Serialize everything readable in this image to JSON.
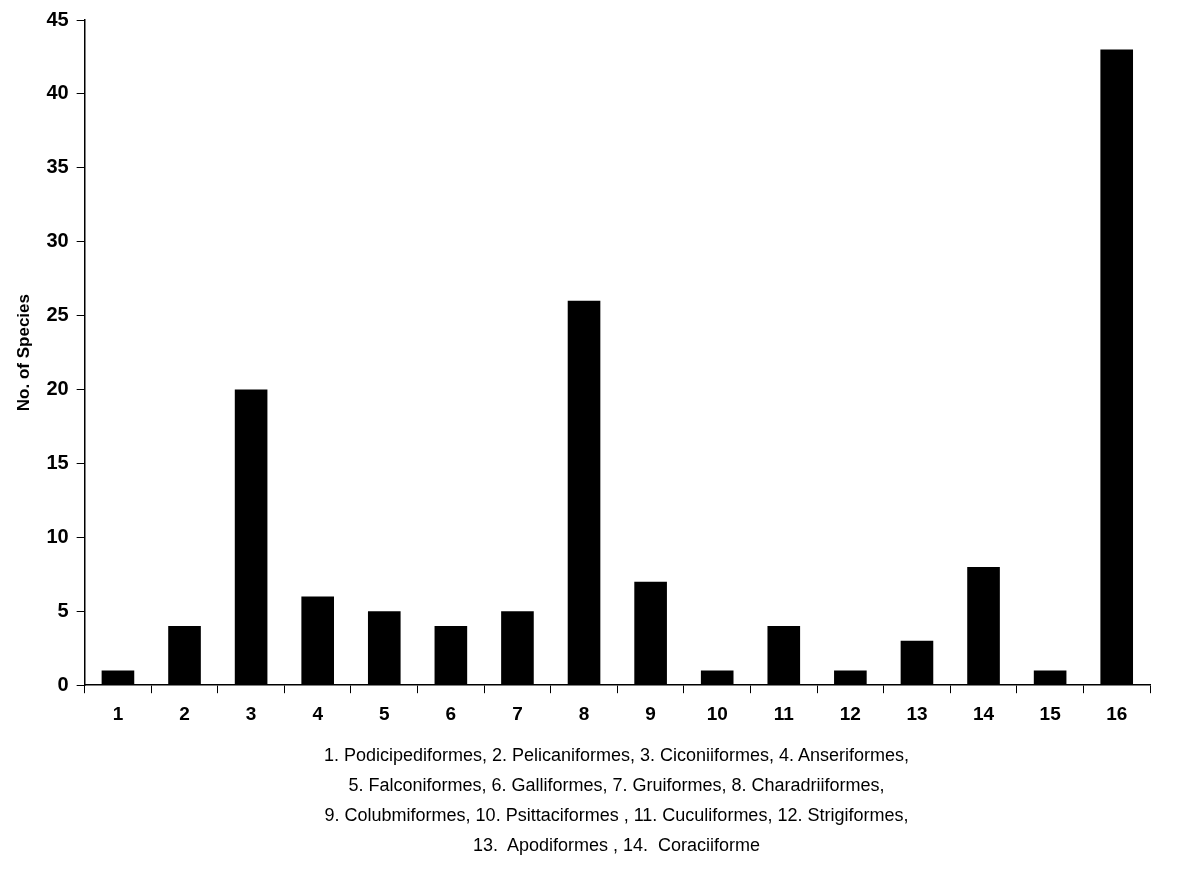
{
  "chart_data": {
    "type": "bar",
    "ylabel": "No. of Species",
    "categories": [
      "1",
      "2",
      "3",
      "4",
      "5",
      "6",
      "7",
      "8",
      "9",
      "10",
      "11",
      "12",
      "13",
      "14",
      "15",
      "16"
    ],
    "values": [
      1,
      4,
      20,
      6,
      5,
      4,
      5,
      26,
      7,
      1,
      4,
      1,
      3,
      8,
      1,
      43
    ],
    "color": "#000000",
    "ylim": [
      0,
      45
    ],
    "yticks": [
      0,
      5,
      10,
      15,
      20,
      25,
      30,
      35,
      40,
      45
    ],
    "annotations": [
      "1. Podicipediformes, 2. Pelicaniformes, 3. Ciconiiformes, 4. Anseriformes,",
      "5. Falconiformes, 6. Galliformes, 7. Gruiformes, 8. Charadriiformes,",
      "9. Colubmiformes, 10. Psittaciformes , 11. Cuculiformes, 12. Strigiformes,",
      "13.  Apodiformes , 14.  Coraciiforme"
    ]
  }
}
